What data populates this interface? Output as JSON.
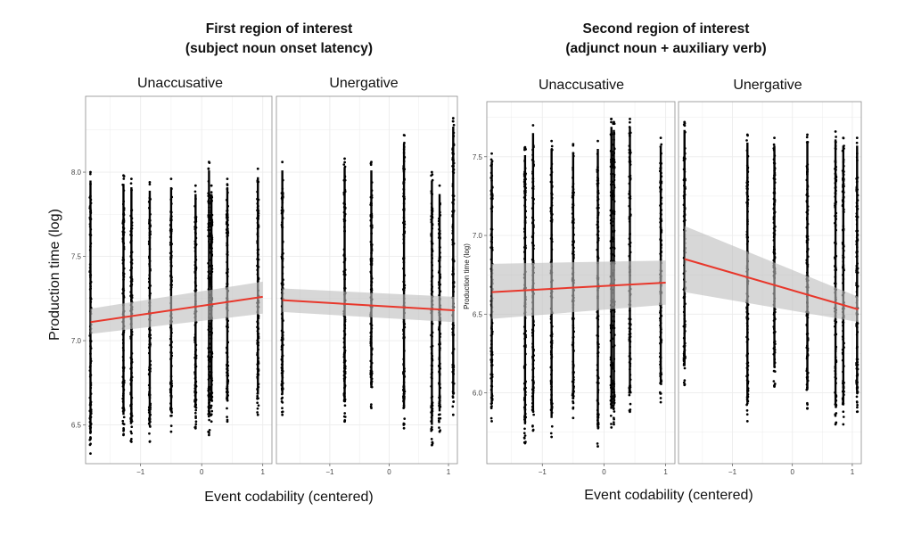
{
  "figure": {
    "title_left": "First region of interest",
    "subtitle_left": "(subject noun onset latency)",
    "title_right": "Second region of interest",
    "subtitle_right": "(adjunct noun + auxiliary verb)",
    "xlabel": "Event codability (centered)",
    "ylabel": "Production time (log)",
    "ylabel_partial": "Production time (log)"
  },
  "colors": {
    "points": "#000000",
    "line": "#e8372b",
    "ribbon": "#bdbdbd",
    "grid": "#ececec",
    "panel_border": "#8c8c8c"
  },
  "chart_data": [
    {
      "type": "scatter",
      "region": "First region of interest",
      "facet": "Unaccusative",
      "xlabel": "Event codability (centered)",
      "ylabel": "Production time (log)",
      "xlim": [
        -1.9,
        1.15
      ],
      "ylim": [
        6.27,
        8.45
      ],
      "xticks": [
        -1,
        0,
        1
      ],
      "xtick_labels": [
        "−1",
        "0",
        "1"
      ],
      "yticks": [
        6.5,
        7.0,
        7.5,
        8.0
      ],
      "ytick_labels": [
        "6.5",
        "7.0",
        "7.5",
        "8.0"
      ],
      "x_values": [
        -1.82,
        -1.28,
        -1.15,
        -0.85,
        -0.5,
        -0.1,
        0.12,
        0.16,
        0.42,
        0.92
      ],
      "y_range": [
        [
          6.33,
          8.0
        ],
        [
          6.44,
          7.98
        ],
        [
          6.4,
          7.96
        ],
        [
          6.4,
          7.94
        ],
        [
          6.46,
          7.96
        ],
        [
          6.48,
          7.92
        ],
        [
          6.44,
          8.06
        ],
        [
          6.52,
          7.92
        ],
        [
          6.52,
          7.96
        ],
        [
          6.56,
          8.02
        ]
      ],
      "trend": {
        "x": [
          -1.82,
          1.0
        ],
        "y": [
          7.11,
          7.26
        ],
        "ci_low": [
          7.04,
          7.16
        ],
        "ci_high": [
          7.19,
          7.35
        ]
      }
    },
    {
      "type": "scatter",
      "region": "First region of interest",
      "facet": "Unergative",
      "xlabel": "Event codability (centered)",
      "ylabel": "Production time (log)",
      "xlim": [
        -1.9,
        1.15
      ],
      "ylim": [
        6.27,
        8.45
      ],
      "xticks": [
        -1,
        0,
        1
      ],
      "xtick_labels": [
        "−1",
        "0",
        "1"
      ],
      "yticks": [
        6.5,
        7.0,
        7.5,
        8.0
      ],
      "ytick_labels": [
        "6.5",
        "7.0",
        "7.5",
        "8.0"
      ],
      "x_values": [
        -1.8,
        -0.75,
        -0.3,
        0.25,
        0.72,
        0.85,
        1.08
      ],
      "y_range": [
        [
          6.56,
          8.06
        ],
        [
          6.52,
          8.08
        ],
        [
          6.6,
          8.06
        ],
        [
          6.48,
          8.22
        ],
        [
          6.38,
          8.0
        ],
        [
          6.46,
          7.92
        ],
        [
          6.56,
          8.32
        ]
      ],
      "trend": {
        "x": [
          -1.8,
          1.1
        ],
        "y": [
          7.24,
          7.18
        ],
        "ci_low": [
          7.17,
          7.11
        ],
        "ci_high": [
          7.31,
          7.26
        ]
      }
    },
    {
      "type": "scatter",
      "region": "Second region of interest",
      "facet": "Unaccusative",
      "xlabel": "Event codability (centered)",
      "ylabel": "Production time (log)",
      "xlim": [
        -1.9,
        1.15
      ],
      "ylim": [
        5.55,
        7.85
      ],
      "xticks": [
        -1,
        0,
        1
      ],
      "xtick_labels": [
        "−1",
        "0",
        "1"
      ],
      "yticks": [
        6.0,
        6.5,
        7.0,
        7.5
      ],
      "ytick_labels": [
        "6.0",
        "6.5",
        "7.0",
        "7.5"
      ],
      "x_values": [
        -1.82,
        -1.28,
        -1.15,
        -0.85,
        -0.5,
        -0.1,
        0.12,
        0.16,
        0.42,
        0.92
      ],
      "y_range": [
        [
          5.82,
          7.52
        ],
        [
          5.68,
          7.56
        ],
        [
          5.76,
          7.7
        ],
        [
          5.72,
          7.6
        ],
        [
          5.84,
          7.58
        ],
        [
          5.66,
          7.6
        ],
        [
          5.78,
          7.74
        ],
        [
          5.8,
          7.72
        ],
        [
          5.88,
          7.74
        ],
        [
          5.94,
          7.62
        ]
      ],
      "trend": {
        "x": [
          -1.82,
          1.0
        ],
        "y": [
          6.64,
          6.7
        ],
        "ci_low": [
          6.47,
          6.56
        ],
        "ci_high": [
          6.82,
          6.84
        ]
      }
    },
    {
      "type": "scatter",
      "region": "Second region of interest",
      "facet": "Unergative",
      "xlabel": "Event codability (centered)",
      "ylabel": "Production time (log)",
      "xlim": [
        -1.9,
        1.15
      ],
      "ylim": [
        5.55,
        7.85
      ],
      "xticks": [
        -1,
        0,
        1
      ],
      "xtick_labels": [
        "−1",
        "0",
        "1"
      ],
      "yticks": [
        6.0,
        6.5,
        7.0,
        7.5
      ],
      "ytick_labels": [
        "6.0",
        "6.5",
        "7.0",
        "7.5"
      ],
      "x_values": [
        -1.8,
        -0.75,
        -0.3,
        0.25,
        0.72,
        0.85,
        1.08
      ],
      "y_range": [
        [
          6.05,
          7.72
        ],
        [
          5.82,
          7.64
        ],
        [
          6.04,
          7.62
        ],
        [
          5.9,
          7.64
        ],
        [
          5.8,
          7.66
        ],
        [
          5.8,
          7.62
        ],
        [
          5.88,
          7.62
        ]
      ],
      "trend": {
        "x": [
          -1.8,
          1.1
        ],
        "y": [
          6.85,
          6.53
        ],
        "ci_low": [
          6.64,
          6.45
        ],
        "ci_high": [
          7.06,
          6.61
        ]
      }
    }
  ]
}
